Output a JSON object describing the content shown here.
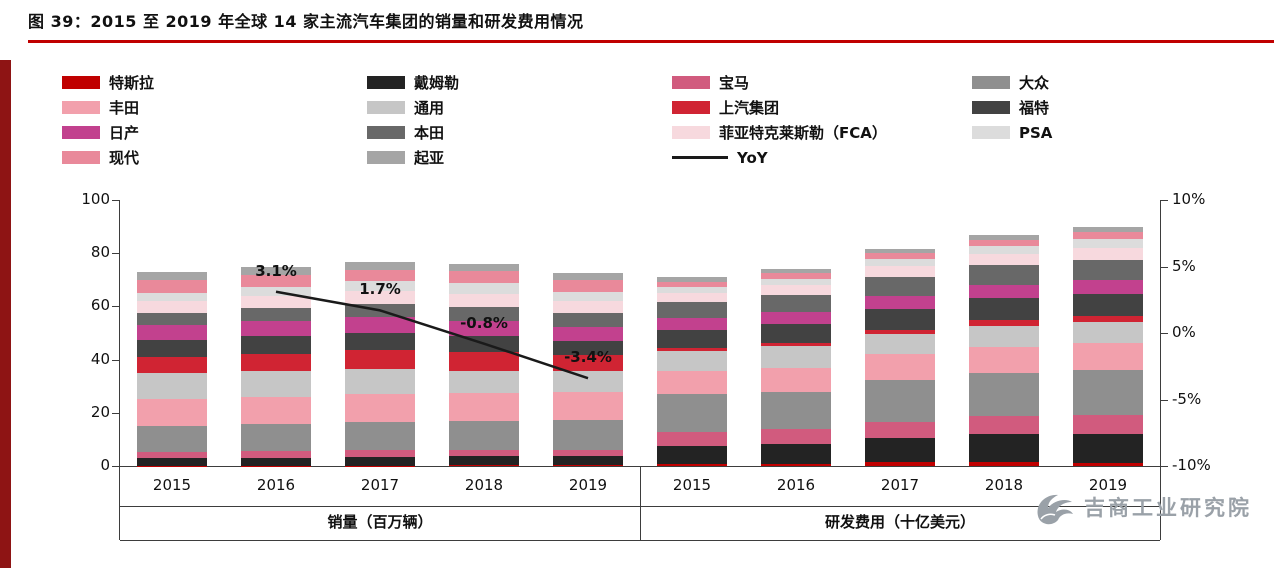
{
  "title": "图 39：2015 至 2019 年全球 14 家主流汽车集团的销量和研发费用情况",
  "accent": {
    "title_rule": "#c00000",
    "left_stripe": "#8e1414",
    "axis_color": "#3d3d3d",
    "yoy_line": "#1a1a1a"
  },
  "watermark": {
    "text": "吉商工业研究院",
    "logo": "phoenix-bird-logo"
  },
  "chart_data": {
    "type": "bar",
    "stacked": true,
    "categories": [
      "2015",
      "2016",
      "2017",
      "2018",
      "2019"
    ],
    "groups": [
      {
        "key": "sales",
        "label": "销量（百万辆）"
      },
      {
        "key": "rnd",
        "label": "研发费用（十亿美元）"
      }
    ],
    "left_axis": {
      "min": 0,
      "max": 100,
      "label_values": [
        100,
        80,
        60,
        40,
        20,
        0
      ]
    },
    "right_axis": {
      "min": -10,
      "max": 10,
      "labels": [
        "10%",
        "5%",
        "0%",
        "-5%",
        "-10%"
      ],
      "values": [
        10,
        5,
        0,
        -5,
        -10
      ]
    },
    "series": [
      {
        "name": "特斯拉",
        "color": "#c00000",
        "sales": [
          0.1,
          0.1,
          0.1,
          0.2,
          0.4
        ],
        "rnd": [
          0.7,
          0.8,
          1.4,
          1.5,
          1.3
        ]
      },
      {
        "name": "戴姆勒",
        "color": "#232323",
        "sales": [
          2.9,
          3.0,
          3.3,
          3.4,
          3.3
        ],
        "rnd": [
          7.0,
          7.6,
          9.2,
          10.4,
          10.9
        ]
      },
      {
        "name": "宝马",
        "color": "#d15b7e",
        "sales": [
          2.2,
          2.4,
          2.5,
          2.5,
          2.5
        ],
        "rnd": [
          5.2,
          5.5,
          6.1,
          6.9,
          7.0
        ]
      },
      {
        "name": "大众",
        "color": "#8f8f8f",
        "sales": [
          9.9,
          10.3,
          10.7,
          10.8,
          11.0
        ],
        "rnd": [
          14.0,
          14.1,
          15.8,
          16.1,
          17.0
        ]
      },
      {
        "name": "丰田",
        "color": "#f2a0ac",
        "sales": [
          10.1,
          10.2,
          10.4,
          10.6,
          10.7
        ],
        "rnd": [
          8.9,
          9.0,
          9.8,
          10.0,
          10.2
        ]
      },
      {
        "name": "通用",
        "color": "#c6c6c6",
        "sales": [
          9.8,
          9.6,
          9.6,
          8.4,
          7.7
        ],
        "rnd": [
          7.5,
          8.1,
          7.3,
          7.8,
          7.9
        ]
      },
      {
        "name": "上汽集团",
        "color": "#d02433",
        "sales": [
          5.9,
          6.5,
          6.9,
          7.1,
          6.2
        ],
        "rnd": [
          1.2,
          1.3,
          1.6,
          2.2,
          2.1
        ]
      },
      {
        "name": "福特",
        "color": "#424242",
        "sales": [
          6.6,
          6.7,
          6.6,
          6.0,
          5.4
        ],
        "rnd": [
          6.7,
          7.0,
          8.0,
          8.2,
          8.4
        ]
      },
      {
        "name": "日产",
        "color": "#c2418e",
        "sales": [
          5.4,
          5.6,
          5.8,
          5.7,
          5.2
        ],
        "rnd": [
          4.3,
          4.4,
          4.9,
          5.0,
          5.0
        ]
      },
      {
        "name": "本田",
        "color": "#686868",
        "sales": [
          4.7,
          5.0,
          5.2,
          5.3,
          5.3
        ],
        "rnd": [
          6.0,
          6.5,
          7.1,
          7.4,
          7.7
        ]
      },
      {
        "name": "菲亚特克莱斯勒（FCA）",
        "color": "#f7d9de",
        "sales": [
          4.6,
          4.7,
          4.7,
          4.8,
          4.4
        ],
        "rnd": [
          3.7,
          3.8,
          4.0,
          4.2,
          4.5
        ]
      },
      {
        "name": "PSA",
        "color": "#dcdcdc",
        "sales": [
          3.0,
          3.1,
          3.6,
          3.9,
          3.5
        ],
        "rnd": [
          2.2,
          2.4,
          2.7,
          3.0,
          3.3
        ]
      },
      {
        "name": "现代",
        "color": "#e9899a",
        "sales": [
          4.9,
          4.6,
          4.5,
          4.6,
          4.4
        ],
        "rnd": [
          2.0,
          1.9,
          2.1,
          2.4,
          2.6
        ]
      },
      {
        "name": "起亚",
        "color": "#a5a5a5",
        "sales": [
          3.0,
          3.0,
          2.7,
          2.8,
          2.8
        ],
        "rnd": [
          1.6,
          1.6,
          1.7,
          1.8,
          1.9
        ]
      }
    ],
    "yoy": {
      "name": "YoY",
      "color": "#1a1a1a",
      "applies_to_group": "销量（百万辆）",
      "categories": [
        "2016",
        "2017",
        "2018",
        "2019"
      ],
      "values": [
        3.1,
        1.7,
        -0.8,
        -3.4
      ],
      "labels": [
        "3.1%",
        "1.7%",
        "-0.8%",
        "-3.4%"
      ]
    },
    "legend_rows": [
      [
        "特斯拉",
        "戴姆勒",
        "宝马",
        "大众"
      ],
      [
        "丰田",
        "通用",
        "上汽集团",
        "福特"
      ],
      [
        "日产",
        "本田",
        "菲亚特克莱斯勒（FCA）",
        "PSA"
      ],
      [
        "现代",
        "起亚",
        "YoY"
      ]
    ]
  }
}
